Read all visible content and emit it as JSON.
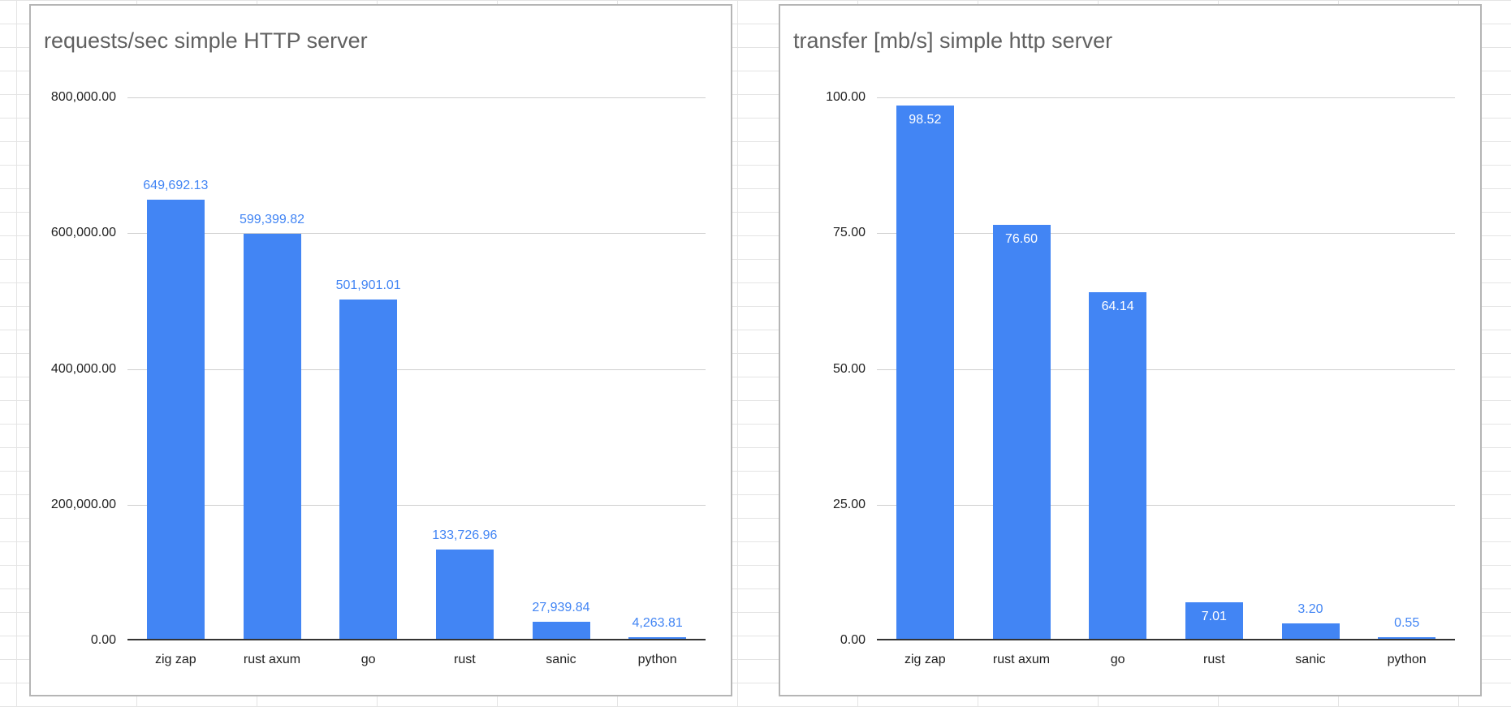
{
  "sheet": {
    "grid_color": "#e4e4e4"
  },
  "chart_data": [
    {
      "type": "bar",
      "title": "requests/sec simple HTTP server",
      "categories": [
        "zig zap",
        "rust axum",
        "go",
        "rust",
        "sanic",
        "python"
      ],
      "values": [
        649692.13,
        599399.82,
        501901.01,
        133726.96,
        27939.84,
        4263.81
      ],
      "value_labels": [
        "649,692.13",
        "599,399.82",
        "501,901.01",
        "133,726.96",
        "27,939.84",
        "4,263.81"
      ],
      "y_tick_labels": [
        "0.00",
        "200,000.00",
        "400,000.00",
        "600,000.00",
        "800,000.00"
      ],
      "ylim": [
        0,
        800000
      ],
      "xlabel": "",
      "ylabel": "",
      "grid": true,
      "legend": "none",
      "bar_color": "#4285f4",
      "data_label_color": "#4285f4",
      "data_label_position": "above"
    },
    {
      "type": "bar",
      "title": "transfer [mb/s] simple http server",
      "categories": [
        "zig zap",
        "rust axum",
        "go",
        "rust",
        "sanic",
        "python"
      ],
      "values": [
        98.52,
        76.6,
        64.14,
        7.01,
        3.2,
        0.55
      ],
      "value_labels": [
        "98.52",
        "76.60",
        "64.14",
        "7.01",
        "3.20",
        "0.55"
      ],
      "y_tick_labels": [
        "0.00",
        "25.00",
        "50.00",
        "75.00",
        "100.00"
      ],
      "ylim": [
        0,
        100
      ],
      "xlabel": "",
      "ylabel": "",
      "grid": true,
      "legend": "none",
      "bar_color": "#4285f4",
      "data_label_color": "#4285f4",
      "inside_label_color": "#ffffff",
      "data_label_position": "inside-top"
    }
  ]
}
